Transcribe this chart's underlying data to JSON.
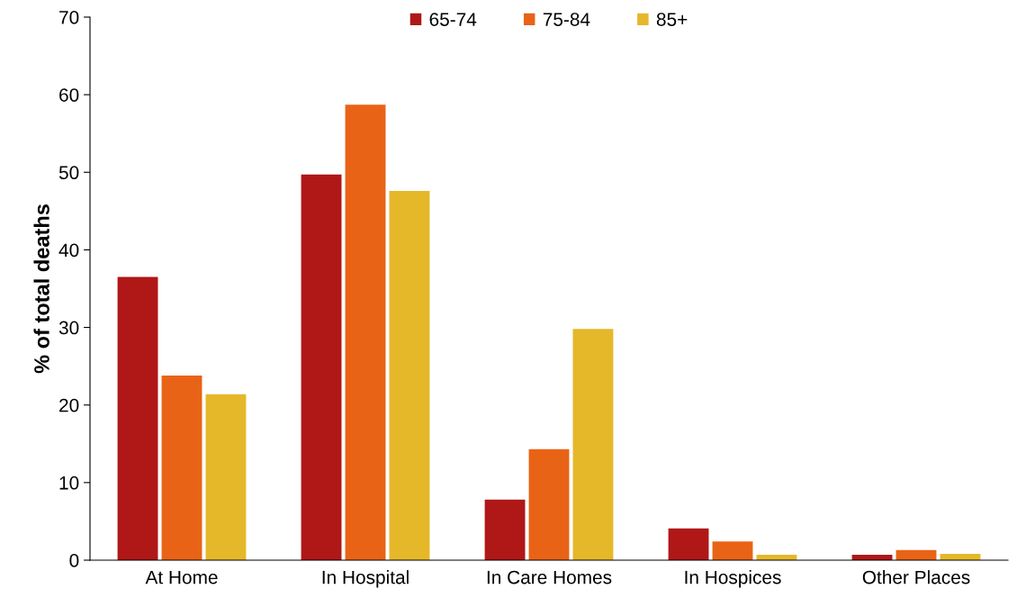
{
  "chart_data": {
    "type": "bar",
    "ylabel": "% of total deaths",
    "categories": [
      "At Home",
      "In Hospital",
      "In Care Homes",
      "In Hospices",
      "Other Places"
    ],
    "series": [
      {
        "name": "65-74",
        "color": "#b01717",
        "values": [
          36.5,
          49.7,
          7.8,
          4.1,
          0.7
        ]
      },
      {
        "name": "75-84",
        "color": "#e96316",
        "values": [
          23.8,
          58.7,
          14.3,
          2.4,
          1.3
        ]
      },
      {
        "name": "85+",
        "color": "#e5b82a",
        "values": [
          21.4,
          47.6,
          29.8,
          0.7,
          0.8
        ]
      }
    ],
    "ylim": [
      0,
      70
    ],
    "yticks": [
      0,
      10,
      20,
      30,
      40,
      50,
      60,
      70
    ],
    "grid": false,
    "legend": "top"
  }
}
